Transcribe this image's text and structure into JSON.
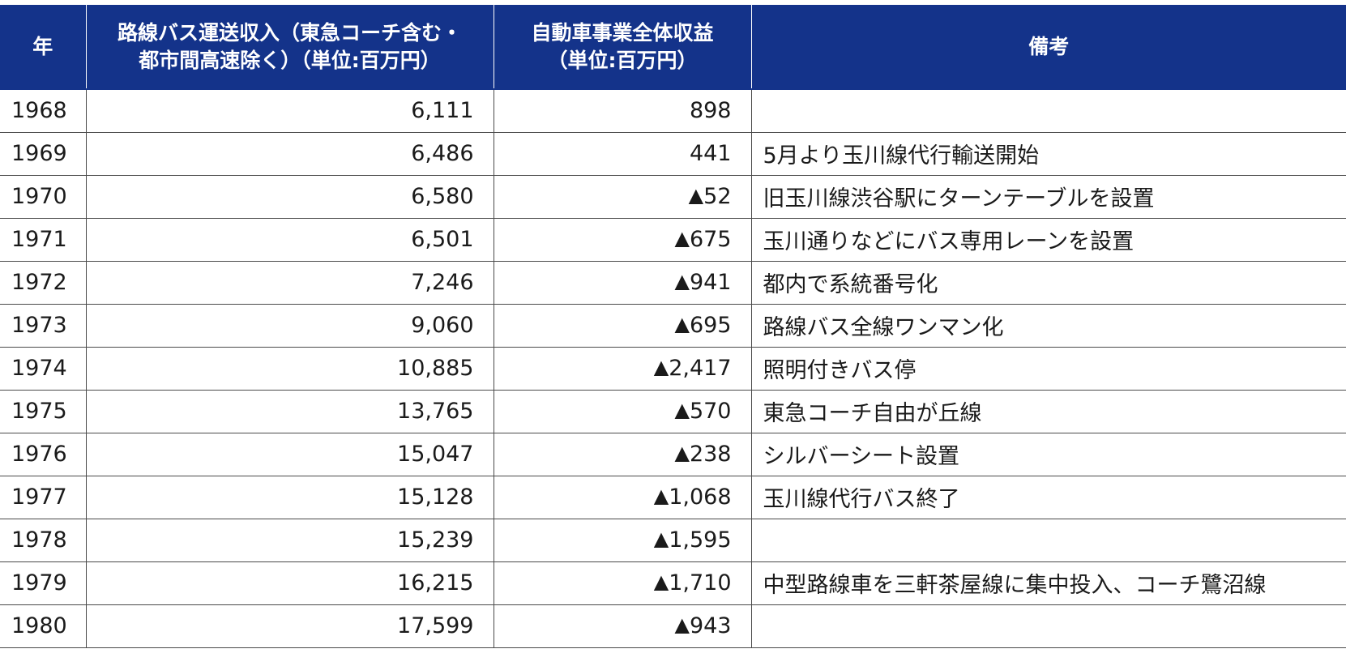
{
  "table": {
    "headers": [
      {
        "lines": [
          "年"
        ]
      },
      {
        "lines": [
          "路線バス運送収入（東急コーチ含む・",
          "都市間高速除く）（単位:百万円）"
        ]
      },
      {
        "lines": [
          "自動車事業全体収益",
          "（単位:百万円）"
        ]
      },
      {
        "lines": [
          "備考"
        ]
      }
    ],
    "negative_marker": "▲",
    "rows": [
      {
        "year": "1968",
        "bus_revenue": "6,111",
        "auto_neg": false,
        "auto_value": "898",
        "note": ""
      },
      {
        "year": "1969",
        "bus_revenue": "6,486",
        "auto_neg": false,
        "auto_value": "441",
        "note": "5月より玉川線代行輸送開始"
      },
      {
        "year": "1970",
        "bus_revenue": "6,580",
        "auto_neg": true,
        "auto_value": "52",
        "note": "旧玉川線渋谷駅にターンテーブルを設置"
      },
      {
        "year": "1971",
        "bus_revenue": "6,501",
        "auto_neg": true,
        "auto_value": "675",
        "note": "玉川通りなどにバス専用レーンを設置"
      },
      {
        "year": "1972",
        "bus_revenue": "7,246",
        "auto_neg": true,
        "auto_value": "941",
        "note": "都内で系統番号化"
      },
      {
        "year": "1973",
        "bus_revenue": "9,060",
        "auto_neg": true,
        "auto_value": "695",
        "note": "路線バス全線ワンマン化"
      },
      {
        "year": "1974",
        "bus_revenue": "10,885",
        "auto_neg": true,
        "auto_value": "2,417",
        "note": "照明付きバス停"
      },
      {
        "year": "1975",
        "bus_revenue": "13,765",
        "auto_neg": true,
        "auto_value": "570",
        "note": "東急コーチ自由が丘線"
      },
      {
        "year": "1976",
        "bus_revenue": "15,047",
        "auto_neg": true,
        "auto_value": "238",
        "note": "シルバーシート設置"
      },
      {
        "year": "1977",
        "bus_revenue": "15,128",
        "auto_neg": true,
        "auto_value": "1,068",
        "note": "玉川線代行バス終了"
      },
      {
        "year": "1978",
        "bus_revenue": "15,239",
        "auto_neg": true,
        "auto_value": "1,595",
        "note": ""
      },
      {
        "year": "1979",
        "bus_revenue": "16,215",
        "auto_neg": true,
        "auto_value": "1,710",
        "note": "中型路線車を三軒茶屋線に集中投入、コーチ鷺沼線"
      },
      {
        "year": "1980",
        "bus_revenue": "17,599",
        "auto_neg": true,
        "auto_value": "943",
        "note": ""
      }
    ]
  },
  "colors": {
    "header_bg": "#14338a",
    "header_text": "#ffffff",
    "grid": "#4a4a4a",
    "text": "#1a1a1a"
  }
}
